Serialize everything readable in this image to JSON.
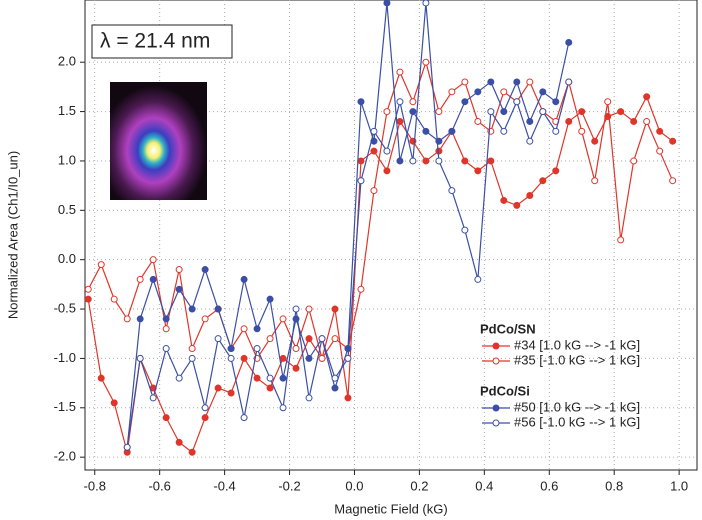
{
  "chart_data": {
    "type": "line",
    "xlabel": "Magnetic Field (kG)",
    "ylabel": "Normalized Area (Ch1/I0_un)",
    "annotation": "λ = 21.4 nm",
    "xlim": [
      -0.83,
      1.055
    ],
    "ylim": [
      -2.13,
      2.63
    ],
    "xticks": [
      -0.8,
      -0.6,
      -0.4,
      -0.2,
      {
        "value": 0,
        "label": "0.0"
      },
      0.2,
      0.4,
      0.6,
      0.8,
      {
        "value": 1,
        "label": "1.0"
      }
    ],
    "yticks": [
      {
        "value": -2,
        "label": "-2.0"
      },
      -1.5,
      {
        "value": -1,
        "label": "-1.0"
      },
      -0.5,
      {
        "value": 0,
        "label": "0.0"
      },
      0.5,
      {
        "value": 1,
        "label": "1.0"
      },
      1.5,
      {
        "value": 2,
        "label": "2.0"
      }
    ],
    "grid": true,
    "legend_titles": [
      "PdCo/SN",
      "PdCo/Si"
    ],
    "series": [
      {
        "name": "#34 [1.0 kG --> -1 kG]",
        "color": "#e0352a",
        "marker": "filled",
        "x": [
          -0.82,
          -0.78,
          -0.74,
          -0.7,
          -0.66,
          -0.62,
          -0.58,
          -0.54,
          -0.5,
          -0.46,
          -0.42,
          -0.38,
          -0.34,
          -0.3,
          -0.26,
          -0.22,
          -0.18,
          -0.14,
          -0.1,
          -0.06,
          -0.02,
          0.02,
          0.06,
          0.1,
          0.14,
          0.18,
          0.22,
          0.26,
          0.3,
          0.34,
          0.38,
          0.42,
          0.46,
          0.5,
          0.54,
          0.58,
          0.62,
          0.66,
          0.7,
          0.74,
          0.78,
          0.82,
          0.86,
          0.9,
          0.94,
          0.98
        ],
        "values": [
          -0.4,
          -1.2,
          -1.45,
          -1.95,
          -1.0,
          -1.3,
          -1.6,
          -1.85,
          -1.95,
          -1.6,
          -1.3,
          -1.35,
          -1.0,
          -1.2,
          -1.3,
          -1.0,
          -1.1,
          -0.8,
          -1.0,
          -0.5,
          -1.4,
          1.0,
          1.1,
          0.9,
          1.4,
          1.2,
          1.0,
          1.1,
          1.3,
          1.0,
          0.9,
          1.0,
          0.6,
          0.55,
          0.65,
          0.8,
          0.9,
          1.4,
          1.5,
          1.2,
          1.45,
          1.5,
          1.4,
          1.65,
          1.3,
          1.2
        ]
      },
      {
        "name": "#35 [-1.0 kG --> 1 kG]",
        "color": "#e0352a",
        "marker": "hollow",
        "x": [
          -0.82,
          -0.78,
          -0.74,
          -0.7,
          -0.66,
          -0.62,
          -0.58,
          -0.54,
          -0.5,
          -0.46,
          -0.42,
          -0.38,
          -0.34,
          -0.3,
          -0.26,
          -0.22,
          -0.18,
          -0.14,
          -0.1,
          -0.06,
          -0.02,
          0.02,
          0.06,
          0.1,
          0.14,
          0.18,
          0.22,
          0.26,
          0.3,
          0.34,
          0.38,
          0.42,
          0.46,
          0.5,
          0.54,
          0.58,
          0.62,
          0.66,
          0.7,
          0.74,
          0.78,
          0.82,
          0.86,
          0.9,
          0.94,
          0.98
        ],
        "values": [
          -0.3,
          -0.05,
          -0.4,
          -0.6,
          -0.2,
          0.0,
          -0.7,
          -0.1,
          -0.9,
          -0.6,
          -0.5,
          -0.9,
          -0.7,
          -1.0,
          -0.8,
          -0.6,
          -0.9,
          -0.5,
          -1.0,
          -0.8,
          -0.9,
          -0.3,
          0.7,
          1.5,
          1.9,
          1.6,
          2.0,
          1.5,
          1.7,
          1.8,
          1.4,
          1.3,
          1.7,
          1.6,
          1.8,
          1.5,
          1.4,
          1.8,
          1.3,
          0.8,
          1.6,
          0.2,
          1.0,
          1.4,
          1.1,
          0.8
        ]
      },
      {
        "name": "#50 [1.0 kG --> -1 kG]",
        "color": "#3b4fa6",
        "marker": "filled",
        "x": [
          -0.7,
          -0.66,
          -0.62,
          -0.58,
          -0.54,
          -0.5,
          -0.46,
          -0.42,
          -0.38,
          -0.34,
          -0.3,
          -0.26,
          -0.22,
          -0.18,
          -0.14,
          -0.1,
          -0.06,
          -0.02,
          0.02,
          0.06,
          0.1,
          0.14,
          0.18,
          0.22,
          0.26,
          0.3,
          0.34,
          0.38,
          0.42,
          0.46,
          0.5,
          0.54,
          0.58,
          0.62,
          0.66
        ],
        "values": [
          -1.9,
          -0.6,
          -0.2,
          -0.6,
          -0.3,
          -0.5,
          -0.1,
          -0.5,
          -0.9,
          -0.2,
          -0.7,
          -0.4,
          -1.2,
          -0.6,
          -1.0,
          -0.8,
          -1.3,
          -0.9,
          1.6,
          1.2,
          2.6,
          1.0,
          1.5,
          1.3,
          1.2,
          1.3,
          1.6,
          1.7,
          1.8,
          1.5,
          1.8,
          1.4,
          1.7,
          1.6,
          2.2
        ]
      },
      {
        "name": "#56 [-1.0 kG --> 1 kG]",
        "color": "#3b4fa6",
        "marker": "hollow",
        "x": [
          -0.7,
          -0.66,
          -0.62,
          -0.58,
          -0.54,
          -0.5,
          -0.46,
          -0.42,
          -0.38,
          -0.34,
          -0.3,
          -0.26,
          -0.22,
          -0.18,
          -0.14,
          -0.1,
          -0.06,
          -0.02,
          0.02,
          0.06,
          0.1,
          0.14,
          0.18,
          0.22,
          0.26,
          0.3,
          0.34,
          0.38,
          0.42,
          0.46,
          0.5,
          0.54,
          0.58,
          0.62,
          0.66
        ],
        "values": [
          -1.9,
          -1.0,
          -1.4,
          -0.9,
          -1.2,
          -1.0,
          -1.5,
          -0.8,
          -1.0,
          -1.6,
          -0.9,
          -1.2,
          -1.5,
          -0.5,
          -1.4,
          -0.8,
          -1.2,
          -1.0,
          0.8,
          1.3,
          1.1,
          1.6,
          1.0,
          2.6,
          1.0,
          0.7,
          0.3,
          -0.2,
          1.5,
          1.3,
          1.6,
          1.2,
          1.5,
          1.3,
          1.8
        ]
      }
    ]
  }
}
